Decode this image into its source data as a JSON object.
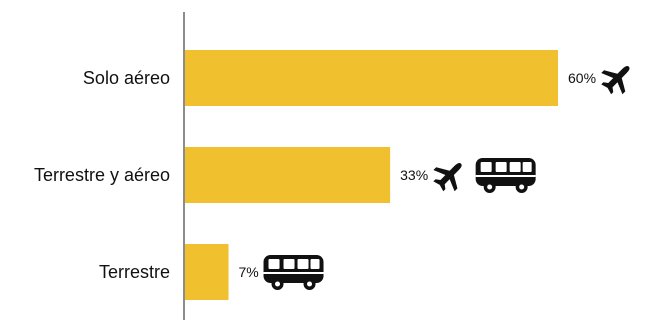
{
  "chart_data": {
    "type": "bar",
    "orientation": "horizontal",
    "title": "",
    "xlabel": "",
    "ylabel": "",
    "categories": [
      "Solo aéreo",
      "Terrestre y aéreo",
      "Terrestre"
    ],
    "values": [
      60,
      33,
      7
    ],
    "value_labels": [
      "60%",
      "33%",
      "7%"
    ],
    "icons": [
      [
        "airplane-icon"
      ],
      [
        "airplane-icon",
        "bus-icon"
      ],
      [
        "bus-icon"
      ]
    ],
    "xlim": [
      0,
      60
    ],
    "grid": false,
    "bar_color": "#F0C02E",
    "axis_color": "#8C8C8C",
    "icon_color": "#111111"
  }
}
